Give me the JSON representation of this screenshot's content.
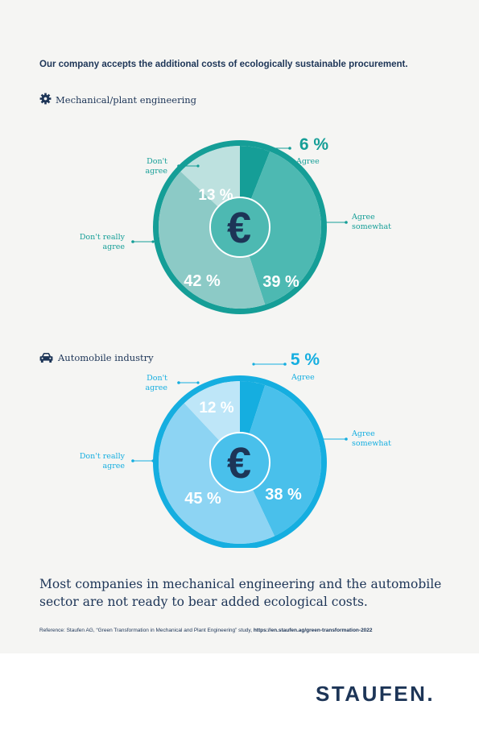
{
  "headline": "Our company accepts the additional costs of ecologically sustainable procurement.",
  "conclusion": "Most companies in mechanical engineering and the automobile sector are not ready to bear added ecological costs.",
  "reference": {
    "text": "Reference: Staufen AG, “Green Transformation in Mechanical and Plant Engineering” study, ",
    "url": "https://en.staufen.ag/green-transformation-2022"
  },
  "logo": "STAUFEN.",
  "colors": {
    "navy": "#1d3557",
    "teal": "#159e97",
    "blue": "#15aee0"
  },
  "chart_data": [
    {
      "type": "pie",
      "title": "Mechanical/plant engineering",
      "icon": "gear-icon",
      "center_icon": "euro-icon",
      "center_symbol": "€",
      "categories": [
        "Agree",
        "Agree somewhat",
        "Don't really agree",
        "Don't agree"
      ],
      "values": [
        6,
        39,
        42,
        13
      ],
      "value_labels": [
        "6 %",
        "39 %",
        "42 %",
        "13 %"
      ],
      "legend_labels": [
        [
          "Agree"
        ],
        [
          "Agree",
          "somewhat"
        ],
        [
          "Don't really",
          "agree"
        ],
        [
          "Don't",
          "agree"
        ]
      ],
      "colors": [
        "#159e97",
        "#4db9b2",
        "#8ccac6",
        "#bde1df"
      ],
      "ring_color": "#159e97",
      "label_color": "#159e97"
    },
    {
      "type": "pie",
      "title": "Automobile industry",
      "icon": "car-icon",
      "center_icon": "euro-icon",
      "center_symbol": "€",
      "categories": [
        "Agree",
        "Agree somewhat",
        "Don't really agree",
        "Don't agree"
      ],
      "values": [
        5,
        38,
        45,
        12
      ],
      "value_labels": [
        "5 %",
        "38 %",
        "45 %",
        "12 %"
      ],
      "legend_labels": [
        [
          "Agree"
        ],
        [
          "Agree",
          "somewhat"
        ],
        [
          "Don't really",
          "agree"
        ],
        [
          "Don't",
          "agree"
        ]
      ],
      "colors": [
        "#15aee0",
        "#49c0eb",
        "#8dd4f3",
        "#bee6f8"
      ],
      "ring_color": "#15aee0",
      "label_color": "#15aee0"
    }
  ]
}
